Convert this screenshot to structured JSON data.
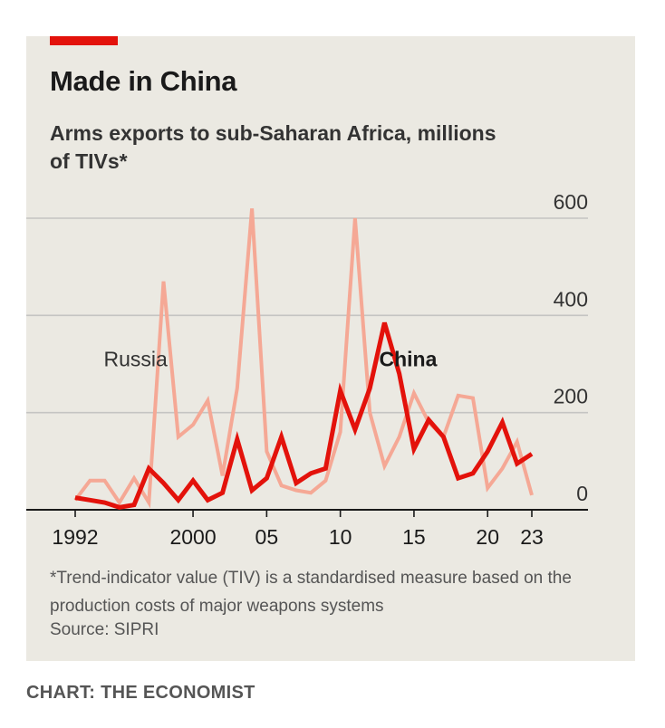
{
  "title": "Made in China",
  "subtitle": "Arms exports to sub-Saharan Africa, millions of TIVs*",
  "footnote": "*Trend-indicator value (TIV) is a standardised measure based on the production costs of major weapons systems",
  "source": "Source: SIPRI",
  "credit": "CHART: THE ECONOMIST",
  "colors": {
    "panel_background": "#ebe9e2",
    "accent": "#e3120b",
    "china": "#e3120b",
    "russia": "#f5a895",
    "grid": "#c4c4c2",
    "axis": "#1a1a1a"
  },
  "chart_data": {
    "type": "line",
    "title": "Made in China",
    "subtitle": "Arms exports to sub-Saharan Africa, millions of TIVs*",
    "x": [
      1992,
      1993,
      1994,
      1995,
      1996,
      1997,
      1998,
      1999,
      2000,
      2001,
      2002,
      2003,
      2004,
      2005,
      2006,
      2007,
      2008,
      2009,
      2010,
      2011,
      2012,
      2013,
      2014,
      2015,
      2016,
      2017,
      2018,
      2019,
      2020,
      2021,
      2022,
      2023
    ],
    "xtick_labels": [
      "1992",
      "2000",
      "05",
      "10",
      "15",
      "20",
      "23"
    ],
    "xtick_values": [
      1992,
      2000,
      2005,
      2010,
      2015,
      2020,
      2023
    ],
    "ylim": [
      0,
      600
    ],
    "yticks": [
      0,
      200,
      400,
      600
    ],
    "ytick_labels": [
      "0",
      "200",
      "400",
      "600"
    ],
    "grid": true,
    "y_axis_position": "right",
    "series": [
      {
        "name": "Russia",
        "color": "#f5a895",
        "values": [
          20,
          60,
          60,
          15,
          65,
          15,
          470,
          150,
          175,
          225,
          70,
          250,
          620,
          120,
          50,
          40,
          35,
          60,
          160,
          600,
          200,
          90,
          150,
          240,
          180,
          150,
          235,
          230,
          45,
          85,
          140,
          30
        ]
      },
      {
        "name": "China",
        "color": "#e3120b",
        "values": [
          25,
          20,
          15,
          5,
          10,
          85,
          55,
          20,
          60,
          20,
          35,
          145,
          40,
          65,
          150,
          55,
          75,
          85,
          245,
          165,
          250,
          385,
          280,
          125,
          185,
          150,
          65,
          75,
          120,
          180,
          95,
          115
        ]
      }
    ]
  }
}
